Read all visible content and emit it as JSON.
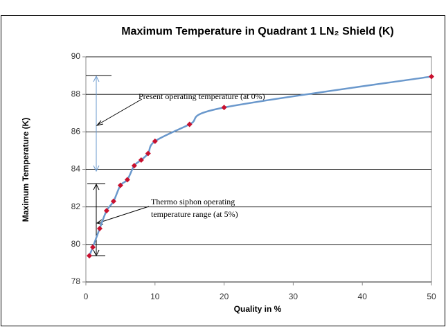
{
  "chart_data": {
    "type": "line",
    "title": "Maximum Temperature in Quadrant 1 LN₂ Shield (K)",
    "x_label": "Quality in %",
    "y_label": "Maximum Temperature (K)",
    "x": [
      0.5,
      1,
      2,
      3,
      4,
      5,
      6,
      7,
      8,
      9,
      10,
      15,
      20,
      50
    ],
    "series": [
      {
        "name": "Maximum Temperature",
        "color": "#6a98cc",
        "marker_color": "#c8102e",
        "values": [
          79.4,
          79.85,
          80.85,
          81.8,
          82.3,
          83.15,
          83.45,
          84.2,
          84.5,
          84.85,
          85.5,
          86.4,
          87.3,
          88.95
        ]
      }
    ],
    "xlim": [
      0,
      50
    ],
    "xticks": [
      0,
      10,
      20,
      30,
      40,
      50
    ],
    "ylim": [
      78,
      90
    ],
    "yticks": [
      78,
      80,
      82,
      84,
      86,
      88,
      90
    ],
    "grid": true,
    "annotations": [
      "Present operating temperature (at 0%)",
      "Thermo siphon operating",
      "temperature range (at 5%)"
    ]
  }
}
